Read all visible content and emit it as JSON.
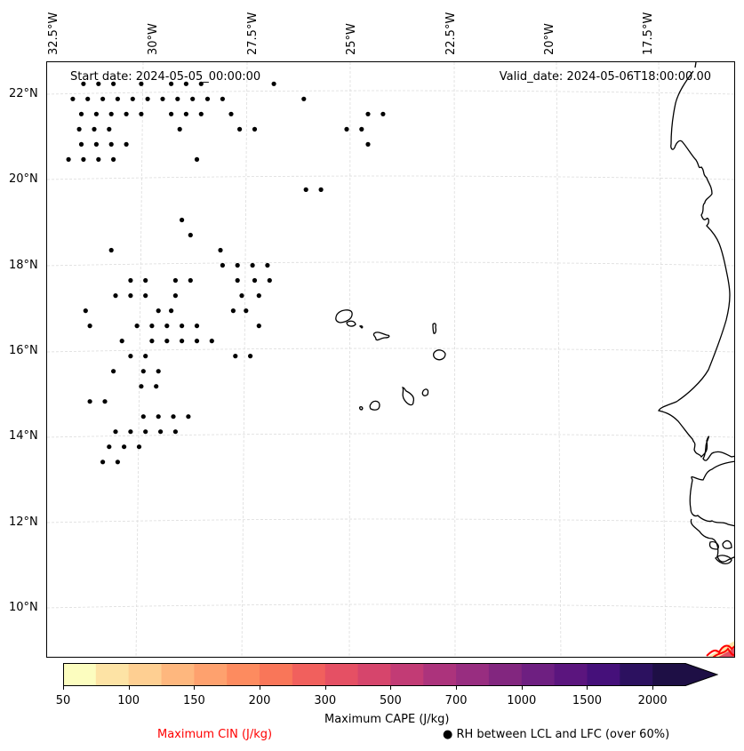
{
  "map": {
    "start_date_text": "Start date: 2024-05-05_00:00:00",
    "valid_date_text": "Valid_date: 2024-05-06T18:00:00.00",
    "lon_ticks": [
      "32.5°W",
      "30°W",
      "27.5°W",
      "25°W",
      "22.5°W",
      "20°W",
      "17.5°W"
    ],
    "lat_ticks": [
      "22°N",
      "20°N",
      "18°N",
      "16°N",
      "14°N",
      "12°N",
      "10°N"
    ],
    "extent": {
      "lon_min": -32.6,
      "lon_max": -16.5,
      "lat_min": 8.9,
      "lat_max": 22.7
    },
    "gridlines": true,
    "colors": {
      "coast": "#000000",
      "cin_contour": "#ff0000",
      "grid": "#d9d9d9"
    }
  },
  "chart_data": {
    "type": "heatmap",
    "title": "",
    "field": "Maximum CAPE (J/kg)",
    "colorbar": {
      "label": "Maximum CAPE (J/kg)",
      "levels": [
        50,
        75,
        100,
        125,
        150,
        175,
        200,
        250,
        300,
        400,
        500,
        600,
        700,
        850,
        1000,
        1250,
        1500,
        1750,
        2000
      ],
      "tick_labels": [
        "50",
        "100",
        "150",
        "200",
        "300",
        "500",
        "700",
        "1000",
        "1500",
        "2000"
      ],
      "tick_values": [
        50,
        100,
        150,
        200,
        300,
        500,
        700,
        1000,
        1500,
        2000
      ],
      "colors": [
        "#fcfdbf",
        "#fde3a5",
        "#fecf92",
        "#feb77e",
        "#fea16e",
        "#fd8b5f",
        "#f97659",
        "#f1605d",
        "#e55064",
        "#d6456c",
        "#c23b75",
        "#ac337c",
        "#982d80",
        "#82267f",
        "#6e1f81",
        "#5b157e",
        "#45107a",
        "#2c115f",
        "#1e0f45"
      ],
      "extend": "max"
    },
    "secondary_labels": {
      "cin": "Maximum CIN (J/kg)",
      "rh": "● RH between LCL and LFC (over 60%)"
    },
    "rh_dots": {
      "description": "RH between LCL and LFC over 60%",
      "points_lon_lat": [
        [
          -31.75,
          22.2
        ],
        [
          -31.4,
          22.2
        ],
        [
          -31.05,
          22.2
        ],
        [
          -30.4,
          22.2
        ],
        [
          -29.7,
          22.2
        ],
        [
          -29.35,
          22.2
        ],
        [
          -29.0,
          22.2
        ],
        [
          -27.3,
          22.2
        ],
        [
          -32.0,
          21.85
        ],
        [
          -31.65,
          21.85
        ],
        [
          -31.3,
          21.85
        ],
        [
          -30.95,
          21.85
        ],
        [
          -30.6,
          21.85
        ],
        [
          -30.25,
          21.85
        ],
        [
          -29.9,
          21.85
        ],
        [
          -29.55,
          21.85
        ],
        [
          -29.2,
          21.85
        ],
        [
          -28.85,
          21.85
        ],
        [
          -28.5,
          21.85
        ],
        [
          -26.6,
          21.85
        ],
        [
          -31.8,
          21.5
        ],
        [
          -31.45,
          21.5
        ],
        [
          -31.1,
          21.5
        ],
        [
          -30.75,
          21.5
        ],
        [
          -30.4,
          21.5
        ],
        [
          -29.7,
          21.5
        ],
        [
          -29.35,
          21.5
        ],
        [
          -29.0,
          21.5
        ],
        [
          -28.3,
          21.5
        ],
        [
          -25.1,
          21.5
        ],
        [
          -24.75,
          21.5
        ],
        [
          -31.85,
          21.15
        ],
        [
          -31.5,
          21.15
        ],
        [
          -31.15,
          21.15
        ],
        [
          -29.5,
          21.15
        ],
        [
          -28.1,
          21.15
        ],
        [
          -27.75,
          21.15
        ],
        [
          -25.6,
          21.15
        ],
        [
          -25.25,
          21.15
        ],
        [
          -31.8,
          20.8
        ],
        [
          -31.45,
          20.8
        ],
        [
          -31.1,
          20.8
        ],
        [
          -30.75,
          20.8
        ],
        [
          -25.1,
          20.8
        ],
        [
          -32.1,
          20.45
        ],
        [
          -31.75,
          20.45
        ],
        [
          -31.4,
          20.45
        ],
        [
          -31.05,
          20.45
        ],
        [
          -29.1,
          20.45
        ],
        [
          -26.55,
          19.75
        ],
        [
          -26.2,
          19.75
        ],
        [
          -29.45,
          19.05
        ],
        [
          -29.25,
          18.7
        ],
        [
          -28.55,
          18.35
        ],
        [
          -31.1,
          18.35
        ],
        [
          -28.5,
          18.0
        ],
        [
          -28.15,
          18.0
        ],
        [
          -27.8,
          18.0
        ],
        [
          -27.45,
          18.0
        ],
        [
          -30.65,
          17.65
        ],
        [
          -30.3,
          17.65
        ],
        [
          -29.6,
          17.65
        ],
        [
          -29.25,
          17.65
        ],
        [
          -28.15,
          17.65
        ],
        [
          -27.75,
          17.65
        ],
        [
          -27.4,
          17.65
        ],
        [
          -31.0,
          17.3
        ],
        [
          -30.65,
          17.3
        ],
        [
          -30.3,
          17.3
        ],
        [
          -29.6,
          17.3
        ],
        [
          -28.05,
          17.3
        ],
        [
          -27.65,
          17.3
        ],
        [
          -31.7,
          16.95
        ],
        [
          -30.0,
          16.95
        ],
        [
          -29.7,
          16.95
        ],
        [
          -28.25,
          16.95
        ],
        [
          -27.95,
          16.95
        ],
        [
          -31.6,
          16.6
        ],
        [
          -30.5,
          16.6
        ],
        [
          -30.15,
          16.6
        ],
        [
          -29.8,
          16.6
        ],
        [
          -29.45,
          16.6
        ],
        [
          -29.1,
          16.6
        ],
        [
          -27.65,
          16.6
        ],
        [
          -30.85,
          16.25
        ],
        [
          -30.15,
          16.25
        ],
        [
          -29.8,
          16.25
        ],
        [
          -29.45,
          16.25
        ],
        [
          -29.1,
          16.25
        ],
        [
          -28.75,
          16.25
        ],
        [
          -30.65,
          15.9
        ],
        [
          -30.3,
          15.9
        ],
        [
          -28.2,
          15.9
        ],
        [
          -27.85,
          15.9
        ],
        [
          -31.05,
          15.55
        ],
        [
          -30.35,
          15.55
        ],
        [
          -30.0,
          15.55
        ],
        [
          -30.4,
          15.2
        ],
        [
          -30.05,
          15.2
        ],
        [
          -31.6,
          14.85
        ],
        [
          -31.25,
          14.85
        ],
        [
          -30.35,
          14.5
        ],
        [
          -30.0,
          14.5
        ],
        [
          -29.65,
          14.5
        ],
        [
          -29.3,
          14.5
        ],
        [
          -31.0,
          14.15
        ],
        [
          -30.65,
          14.15
        ],
        [
          -30.3,
          14.15
        ],
        [
          -29.95,
          14.15
        ],
        [
          -29.6,
          14.15
        ],
        [
          -31.15,
          13.8
        ],
        [
          -30.8,
          13.8
        ],
        [
          -30.45,
          13.8
        ],
        [
          -31.3,
          13.45
        ],
        [
          -30.95,
          13.45
        ]
      ]
    }
  }
}
